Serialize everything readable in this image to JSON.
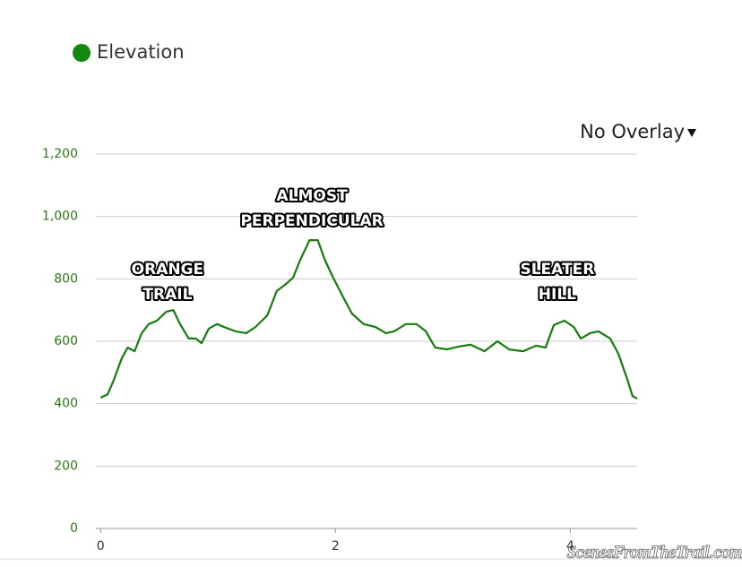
{
  "chart_data": {
    "type": "line",
    "overlay_label": "No Overlay",
    "watermark": "ScenesFromTheTrail.com",
    "x": [
      0,
      0.06,
      0.11,
      0.18,
      0.23,
      0.29,
      0.35,
      0.41,
      0.48,
      0.56,
      0.62,
      0.67,
      0.75,
      0.81,
      0.86,
      0.92,
      0.99,
      1.05,
      1.15,
      1.24,
      1.32,
      1.42,
      1.5,
      1.57,
      1.64,
      1.7,
      1.78,
      1.85,
      1.91,
      1.98,
      2.06,
      2.14,
      2.24,
      2.34,
      2.43,
      2.5,
      2.6,
      2.69,
      2.77,
      2.85,
      2.95,
      3.05,
      3.15,
      3.27,
      3.38,
      3.48,
      3.6,
      3.71,
      3.79,
      3.86,
      3.95,
      4.03,
      4.09,
      4.17,
      4.24,
      4.34,
      4.41,
      4.49,
      4.53,
      4.57
    ],
    "series": [
      {
        "name": "Elevation",
        "color": "#167c0e",
        "values": [
          419,
          430,
          474,
          545,
          580,
          568,
          626,
          655,
          666,
          695,
          700,
          660,
          609,
          609,
          594,
          640,
          655,
          646,
          632,
          626,
          646,
          683,
          761,
          781,
          804,
          861,
          924,
          924,
          861,
          804,
          746,
          689,
          655,
          646,
          626,
          632,
          655,
          655,
          632,
          580,
          574,
          583,
          589,
          568,
          600,
          574,
          568,
          586,
          580,
          652,
          666,
          646,
          609,
          626,
          632,
          609,
          560,
          474,
          425,
          416
        ]
      }
    ],
    "xlim": [
      -0.04,
      4.57
    ],
    "xticks": [
      0,
      2,
      4
    ],
    "ylim": [
      0,
      1200
    ],
    "yticks": [
      0,
      200,
      400,
      600,
      800,
      {
        "value": 1000,
        "label": "1,000"
      },
      {
        "value": 1200,
        "label": "1,200"
      }
    ],
    "grid": true,
    "annotations": [
      {
        "lines": [
          "ORANGE",
          "TRAIL"
        ],
        "x": 0.57,
        "y": 790
      },
      {
        "lines": [
          "ALMOST",
          "PERPENDICULAR"
        ],
        "x": 1.8,
        "y": 1025
      },
      {
        "lines": [
          "SLEATER",
          "HILL"
        ],
        "x": 3.89,
        "y": 790
      }
    ]
  }
}
